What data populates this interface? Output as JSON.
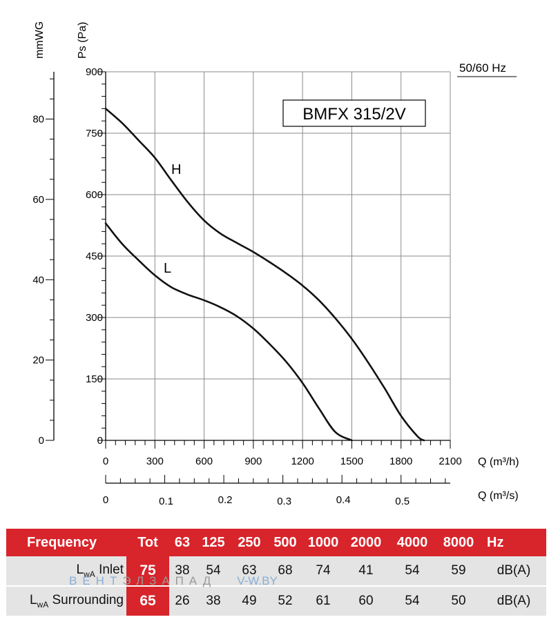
{
  "chart_data": {
    "type": "line",
    "title": "BMFX 315/2V",
    "frequency_label": "50/60 Hz",
    "ylabel_left": "mmWG",
    "ylabel": "Ps (Pa)",
    "xlabel": "Q (m³/h)",
    "xlabel_secondary": "Q (m³/s)",
    "xlim": [
      0,
      2100
    ],
    "ylim": [
      0,
      900
    ],
    "x_ticks": [
      0,
      300,
      600,
      900,
      1200,
      1500,
      1800,
      2100
    ],
    "x_tick_labels": [
      "0",
      "300",
      "600",
      "900",
      "1200",
      "1500",
      "1800",
      "2100"
    ],
    "y_ticks": [
      0,
      150,
      300,
      450,
      600,
      750,
      900
    ],
    "y_tick_labels": [
      "0",
      "150",
      "300",
      "450",
      "600",
      "750",
      "900"
    ],
    "y2_ticks_mmwg": [
      0,
      20,
      40,
      60,
      80
    ],
    "y2_tick_labels": [
      "0",
      "20",
      "40",
      "60",
      "80"
    ],
    "secondary_x_ticks_m3s": [
      0,
      0.1,
      0.2,
      0.3,
      0.4,
      0.5
    ],
    "secondary_x_tick_labels": [
      "0",
      "0.1",
      "0.2",
      "0.3",
      "0.4",
      "0.5"
    ],
    "grid": true,
    "series": [
      {
        "name": "H",
        "x": [
          0,
          100,
          200,
          300,
          400,
          500,
          600,
          700,
          800,
          900,
          1000,
          1100,
          1200,
          1300,
          1400,
          1500,
          1600,
          1700,
          1800,
          1900,
          1940
        ],
        "y": [
          810,
          775,
          733,
          690,
          635,
          582,
          537,
          505,
          482,
          460,
          435,
          408,
          378,
          342,
          298,
          248,
          190,
          127,
          60,
          10,
          0
        ]
      },
      {
        "name": "L",
        "x": [
          0,
          100,
          200,
          300,
          400,
          500,
          600,
          700,
          800,
          900,
          1000,
          1100,
          1200,
          1300,
          1400,
          1500
        ],
        "y": [
          530,
          480,
          440,
          403,
          374,
          356,
          342,
          325,
          303,
          273,
          235,
          192,
          140,
          78,
          20,
          0
        ]
      }
    ]
  },
  "noise_table": {
    "frequency_label": "Frequency",
    "tot_label": "Tot",
    "bands": [
      "63",
      "125",
      "250",
      "500",
      "1000",
      "2000",
      "4000",
      "8000"
    ],
    "unit_hz": "Hz",
    "rows": [
      {
        "label_main": "L",
        "label_sub": "wA",
        "label_suffix": " Inlet",
        "tot": "75",
        "values": [
          "38",
          "54",
          "63",
          "68",
          "74",
          "41",
          "54",
          "59"
        ],
        "unit": "dB(A)"
      },
      {
        "label_main": "L",
        "label_sub": "wA",
        "label_suffix": " Surrounding",
        "tot": "65",
        "values": [
          "26",
          "38",
          "49",
          "52",
          "61",
          "60",
          "54",
          "50"
        ],
        "unit": "dB(A)"
      }
    ]
  },
  "watermark": {
    "text_blue": "ВЕНТ",
    "text_grey": "ЭЛЗАПАД",
    "site": "V-W.BY"
  },
  "colors": {
    "accent_red": "#d8242b",
    "row_grey": "#e4e4e4",
    "grid": "#888888"
  }
}
